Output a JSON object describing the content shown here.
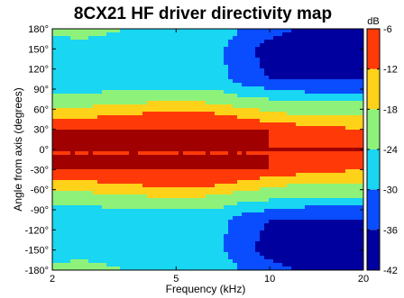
{
  "chart_data": {
    "type": "heatmap",
    "title": "8CX21 HF driver directivity map",
    "xlabel": "Frequency (kHz)",
    "ylabel": "Angle from axis (degrees)",
    "x_scale": "log",
    "xlim": [
      2,
      20
    ],
    "x_ticks": [
      2,
      5,
      10,
      20
    ],
    "x_tick_labels": [
      "2",
      "5",
      "10",
      "20"
    ],
    "ylim": [
      -180,
      180
    ],
    "y_ticks": [
      180,
      150,
      120,
      90,
      60,
      30,
      0,
      -30,
      -60,
      -90,
      -120,
      -150,
      -180
    ],
    "y_tick_labels": [
      "180°",
      "150°",
      "120°",
      "90°",
      "60°",
      "30°",
      "0°",
      "-30°",
      "-60°",
      "-90°",
      "-120°",
      "-150°",
      "-180°"
    ],
    "colorbar": {
      "unit_label": "dB",
      "range": [
        -42,
        -6
      ],
      "ticks": [
        -6,
        -12,
        -18,
        -24,
        -30,
        -36,
        -42
      ],
      "tick_labels": [
        "-6",
        "-12",
        "-18",
        "-24",
        "-30",
        "-36",
        "-42"
      ]
    },
    "contour_step_db": 6,
    "freq_khz": [
      2,
      2.5,
      3,
      3.5,
      4,
      5,
      6,
      7,
      8,
      10,
      12,
      15,
      20
    ],
    "angle_deg": [
      0,
      30,
      45,
      60,
      75,
      90,
      105,
      120,
      150,
      180
    ],
    "level_db": [
      [
        -6,
        -6,
        -12,
        -18,
        -22,
        -26,
        -28,
        -27,
        -27,
        -22
      ],
      [
        -6,
        -6,
        -12,
        -18,
        -22,
        -25,
        -27,
        -26,
        -26,
        -22
      ],
      [
        -6,
        -6,
        -10,
        -15,
        -21,
        -25,
        -27,
        -27,
        -27,
        -23
      ],
      [
        -6,
        -6,
        -10,
        -15,
        -21,
        -25,
        -27,
        -27,
        -27,
        -24
      ],
      [
        -6,
        -6,
        -9,
        -14,
        -20,
        -24,
        -27,
        -27,
        -27,
        -24
      ],
      [
        -6,
        -6,
        -8,
        -13,
        -20,
        -24,
        -27,
        -27,
        -27,
        -25
      ],
      [
        -6,
        -6,
        -8,
        -13,
        -20,
        -24,
        -27,
        -27,
        -27,
        -25
      ],
      [
        -6,
        -6,
        -9,
        -15,
        -21,
        -25,
        -28,
        -29,
        -29,
        -26
      ],
      [
        -6,
        -6,
        -11,
        -17,
        -22,
        -28,
        -32,
        -33,
        -34,
        -30
      ],
      [
        -6,
        -6,
        -14,
        -19,
        -24,
        -30,
        -36,
        -37,
        -38,
        -34
      ],
      [
        -6,
        -8,
        -16,
        -20,
        -25,
        -31,
        -36,
        -38,
        -39,
        -36
      ],
      [
        -6,
        -10,
        -17,
        -20,
        -26,
        -33,
        -36,
        -38,
        -39,
        -38
      ],
      [
        -6,
        -12,
        -17,
        -20,
        -26,
        -33,
        -36,
        -38,
        -39,
        -38
      ]
    ],
    "colors": {
      "lt_-36": "#00009e",
      "-36_-30": "#0a4dff",
      "-30_-24": "#19d6f2",
      "-24_-18": "#8ef27a",
      "-18_-12": "#ffd21a",
      "-12_-6": "#ff3a08",
      "ge_-6": "#a00000"
    }
  }
}
